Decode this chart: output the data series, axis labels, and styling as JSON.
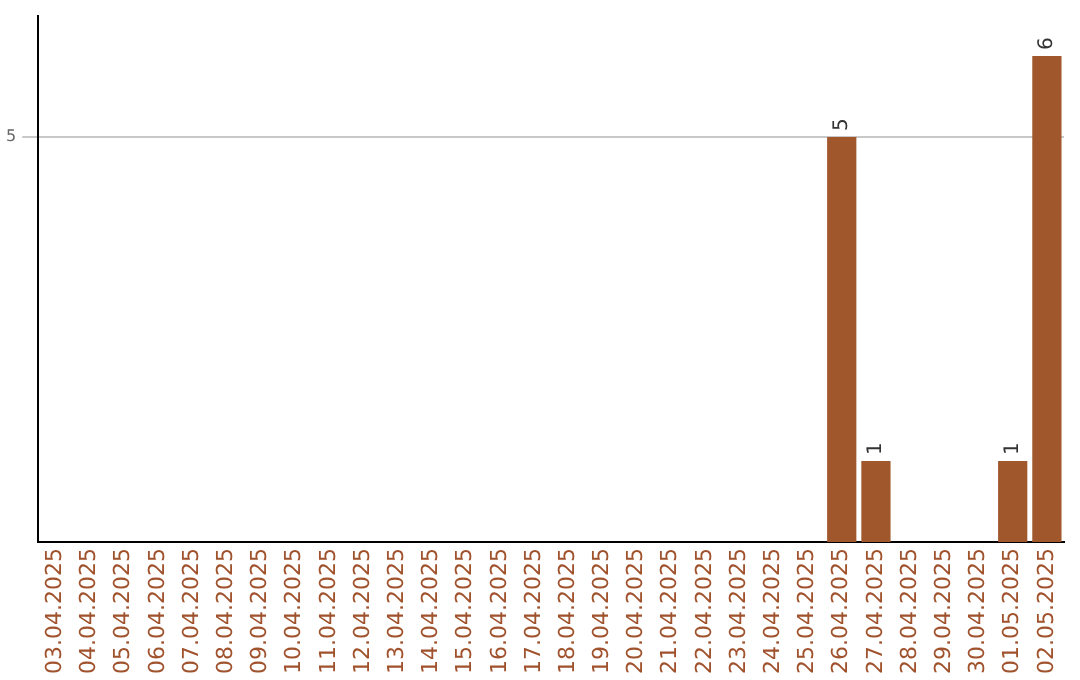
{
  "chart_data": {
    "type": "bar",
    "categories": [
      "03.04.2025",
      "04.04.2025",
      "05.04.2025",
      "06.04.2025",
      "07.04.2025",
      "08.04.2025",
      "09.04.2025",
      "10.04.2025",
      "11.04.2025",
      "12.04.2025",
      "13.04.2025",
      "14.04.2025",
      "15.04.2025",
      "16.04.2025",
      "17.04.2025",
      "18.04.2025",
      "19.04.2025",
      "20.04.2025",
      "21.04.2025",
      "22.04.2025",
      "23.04.2025",
      "24.04.2025",
      "25.04.2025",
      "26.04.2025",
      "27.04.2025",
      "28.04.2025",
      "29.04.2025",
      "30.04.2025",
      "01.05.2025",
      "02.05.2025"
    ],
    "values": [
      null,
      null,
      null,
      null,
      null,
      null,
      null,
      null,
      null,
      null,
      null,
      null,
      null,
      null,
      null,
      null,
      null,
      null,
      null,
      null,
      null,
      null,
      null,
      5,
      1,
      null,
      null,
      null,
      1,
      6
    ],
    "data_labels": true,
    "ylim": [
      0,
      6.5
    ],
    "yticks": [
      5
    ],
    "grid": "y",
    "color": "#a0572b",
    "legend": false
  }
}
